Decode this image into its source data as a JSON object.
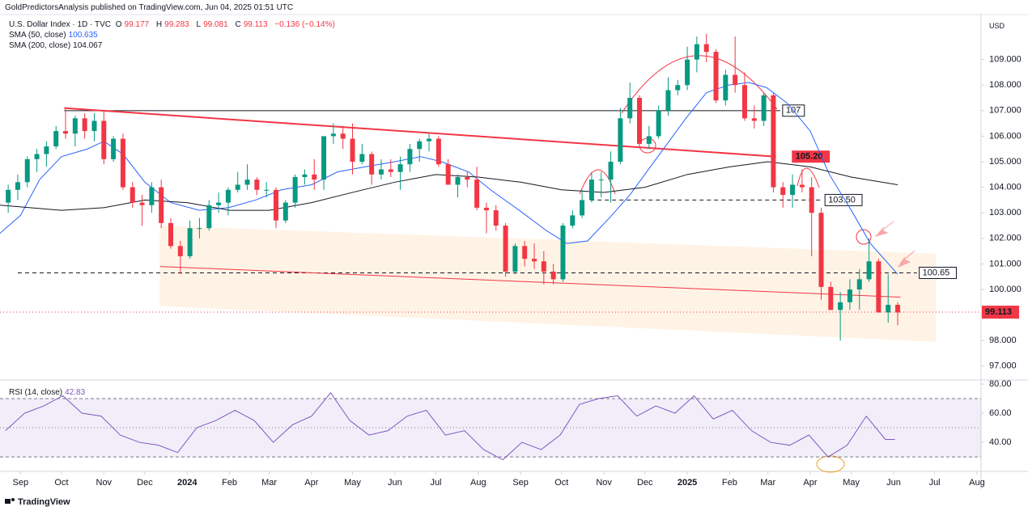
{
  "header": {
    "publisher": "GoldPredictorsAnalysis published on TradingView.com, Jun 04, 2025 01:51 UTC"
  },
  "footer": {
    "brand": "TradingView"
  },
  "chart_data": {
    "type": "candlestick",
    "symbol": "U.S. Dollar Index · 1D · TVC",
    "ohlc_labels": [
      "O",
      "H",
      "L",
      "C"
    ],
    "ohlc_values": [
      99.177,
      99.283,
      99.081,
      99.113
    ],
    "change": "−0.136 (−0.14%)",
    "currency": "USD",
    "up_color": "#089981",
    "down_color": "#f23645",
    "last_color": "#f23645",
    "xlim": [
      "2023-08-17",
      "2025-08-04"
    ],
    "xticks": [
      {
        "value": "2023-09-01",
        "label": "Sep"
      },
      {
        "value": "2023-10-01",
        "label": "Oct"
      },
      {
        "value": "2023-11-01",
        "label": "Nov"
      },
      {
        "value": "2023-12-01",
        "label": "Dec"
      },
      {
        "value": "2024-01-01",
        "label": "2024"
      },
      {
        "value": "2024-02-01",
        "label": "Feb"
      },
      {
        "value": "2024-03-01",
        "label": "Mar"
      },
      {
        "value": "2024-04-01",
        "label": "Apr"
      },
      {
        "value": "2024-05-01",
        "label": "May"
      },
      {
        "value": "2024-06-01",
        "label": "Jun"
      },
      {
        "value": "2024-07-01",
        "label": "Jul"
      },
      {
        "value": "2024-08-01",
        "label": "Aug"
      },
      {
        "value": "2024-09-01",
        "label": "Sep"
      },
      {
        "value": "2024-10-01",
        "label": "Oct"
      },
      {
        "value": "2024-11-01",
        "label": "Nov"
      },
      {
        "value": "2024-12-01",
        "label": "Dec"
      },
      {
        "value": "2025-01-01",
        "label": "2025"
      },
      {
        "value": "2025-02-01",
        "label": "Feb"
      },
      {
        "value": "2025-03-01",
        "label": "Mar"
      },
      {
        "value": "2025-04-01",
        "label": "Apr"
      },
      {
        "value": "2025-05-01",
        "label": "May"
      },
      {
        "value": "2025-06-01",
        "label": "Jun"
      },
      {
        "value": "2025-07-01",
        "label": "Jul"
      },
      {
        "value": "2025-08-01",
        "label": "Aug"
      }
    ],
    "ylim": [
      96.52,
      110.76
    ],
    "yticks": [
      {
        "value": 97,
        "label": "97.000"
      },
      {
        "value": 98,
        "label": "98.000"
      },
      {
        "value": 99,
        "label": "99.000"
      },
      {
        "value": 100,
        "label": "100.000"
      },
      {
        "value": 101,
        "label": "101.000"
      },
      {
        "value": 102,
        "label": "102.000"
      },
      {
        "value": 103,
        "label": "103.000"
      },
      {
        "value": 104,
        "label": "104.000"
      },
      {
        "value": 105,
        "label": "105.000"
      },
      {
        "value": 106,
        "label": "106.000"
      },
      {
        "value": 107,
        "label": "107.000"
      },
      {
        "value": 108,
        "label": "108.000"
      },
      {
        "value": 109,
        "label": "109.000"
      }
    ],
    "grid": false,
    "candles": {
      "x": [
        "2023-08-21",
        "2023-08-28",
        "2023-09-04",
        "2023-09-11",
        "2023-09-18",
        "2023-09-25",
        "2023-10-02",
        "2023-10-09",
        "2023-10-16",
        "2023-10-23",
        "2023-10-30",
        "2023-11-06",
        "2023-11-13",
        "2023-11-20",
        "2023-11-27",
        "2023-12-04",
        "2023-12-11",
        "2023-12-18",
        "2023-12-25",
        "2024-01-01",
        "2024-01-08",
        "2024-01-15",
        "2024-01-22",
        "2024-01-29",
        "2024-02-05",
        "2024-02-12",
        "2024-02-19",
        "2024-02-26",
        "2024-03-04",
        "2024-03-11",
        "2024-03-18",
        "2024-03-25",
        "2024-04-01",
        "2024-04-08",
        "2024-04-15",
        "2024-04-22",
        "2024-04-29",
        "2024-05-06",
        "2024-05-13",
        "2024-05-20",
        "2024-05-27",
        "2024-06-03",
        "2024-06-10",
        "2024-06-17",
        "2024-06-24",
        "2024-07-01",
        "2024-07-08",
        "2024-07-15",
        "2024-07-22",
        "2024-07-29",
        "2024-08-05",
        "2024-08-12",
        "2024-08-19",
        "2024-08-26",
        "2024-09-02",
        "2024-09-09",
        "2024-09-16",
        "2024-09-23",
        "2024-09-30",
        "2024-10-07",
        "2024-10-14",
        "2024-10-21",
        "2024-10-28",
        "2024-11-04",
        "2024-11-11",
        "2024-11-18",
        "2024-11-25",
        "2024-12-02",
        "2024-12-09",
        "2024-12-16",
        "2024-12-23",
        "2024-12-30",
        "2025-01-06",
        "2025-01-13",
        "2025-01-20",
        "2025-01-27",
        "2025-02-03",
        "2025-02-10",
        "2025-02-17",
        "2025-02-24",
        "2025-03-03",
        "2025-03-10",
        "2025-03-17",
        "2025-03-24",
        "2025-03-31",
        "2025-04-07",
        "2025-04-14",
        "2025-04-21",
        "2025-04-28",
        "2025-05-05",
        "2025-05-12",
        "2025-05-19",
        "2025-05-26",
        "2025-06-02"
      ],
      "open": [
        103.4,
        103.9,
        104.2,
        105.1,
        105.3,
        105.6,
        106.2,
        106.1,
        106.7,
        106.2,
        106.6,
        105.1,
        105.9,
        104.0,
        103.4,
        103.3,
        104.0,
        102.6,
        101.7,
        101.3,
        102.4,
        102.4,
        103.3,
        103.4,
        103.9,
        104.1,
        104.3,
        103.9,
        103.9,
        102.7,
        103.4,
        104.4,
        104.5,
        104.3,
        106.0,
        106.1,
        105.9,
        105.0,
        105.3,
        104.5,
        104.7,
        104.6,
        104.9,
        105.5,
        105.8,
        105.9,
        104.9,
        104.1,
        104.4,
        104.3,
        103.2,
        103.1,
        102.5,
        100.7,
        101.7,
        101.2,
        101.1,
        100.7,
        100.4,
        102.5,
        102.9,
        103.5,
        104.3,
        104.3,
        105.0,
        106.7,
        107.5,
        105.7,
        106.0,
        107.0,
        107.8,
        108.0,
        109.0,
        109.6,
        109.3,
        107.4,
        108.4,
        108.0,
        106.7,
        106.6,
        107.6,
        104.0,
        103.7,
        104.1,
        104.0,
        103.0,
        100.1,
        99.2,
        99.5,
        100.0,
        100.4,
        101.1,
        99.1,
        99.4
      ],
      "high": [
        104.1,
        104.5,
        105.2,
        105.5,
        105.8,
        106.4,
        107.1,
        106.8,
        106.9,
        106.9,
        107.0,
        106.0,
        106.1,
        104.2,
        103.7,
        104.2,
        104.3,
        102.8,
        101.9,
        102.7,
        102.8,
        103.5,
        103.8,
        104.0,
        104.6,
        104.9,
        104.4,
        104.2,
        104.0,
        103.5,
        104.5,
        104.7,
        105.1,
        106.0,
        106.5,
        106.4,
        106.5,
        105.7,
        105.4,
        105.1,
        105.1,
        105.2,
        105.7,
        105.9,
        106.1,
        106.0,
        105.1,
        104.5,
        104.6,
        104.8,
        103.4,
        103.3,
        102.6,
        101.8,
        101.9,
        101.8,
        101.5,
        101.0,
        102.6,
        103.1,
        103.9,
        104.6,
        104.6,
        105.4,
        107.1,
        108.1,
        107.6,
        106.4,
        107.2,
        108.3,
        108.2,
        109.5,
        109.9,
        110.0,
        109.4,
        108.6,
        109.9,
        108.5,
        107.2,
        107.7,
        107.7,
        104.2,
        104.5,
        104.7,
        104.4,
        103.2,
        100.3,
        99.9,
        100.4,
        100.8,
        102.0,
        101.2,
        100.6,
        99.5
      ],
      "low": [
        103.0,
        103.5,
        104.0,
        104.6,
        104.8,
        105.5,
        105.9,
        105.6,
        105.9,
        105.8,
        104.9,
        105.0,
        103.9,
        103.2,
        102.5,
        103.0,
        102.4,
        101.6,
        100.6,
        101.2,
        102.0,
        102.3,
        103.0,
        102.9,
        103.8,
        103.9,
        103.7,
        103.6,
        102.4,
        102.6,
        103.2,
        104.1,
        103.9,
        103.9,
        105.7,
        105.5,
        104.5,
        104.9,
        104.1,
        104.3,
        104.4,
        103.9,
        104.6,
        105.0,
        105.4,
        104.8,
        104.1,
        103.6,
        104.0,
        103.1,
        102.2,
        102.3,
        100.5,
        100.6,
        100.9,
        100.8,
        100.2,
        100.2,
        100.3,
        102.4,
        102.8,
        103.4,
        103.6,
        103.4,
        104.9,
        106.5,
        105.6,
        105.5,
        105.9,
        106.8,
        107.6,
        107.8,
        108.5,
        108.9,
        107.3,
        107.2,
        107.7,
        106.6,
        106.3,
        106.4,
        103.8,
        103.2,
        103.2,
        103.8,
        101.3,
        99.6,
        99.2,
        98.0,
        99.2,
        99.2,
        100.3,
        99.1,
        98.7,
        98.6
      ],
      "close": [
        103.9,
        104.2,
        105.1,
        105.3,
        105.6,
        106.2,
        106.1,
        106.7,
        106.2,
        106.6,
        105.1,
        105.9,
        104.0,
        103.4,
        103.3,
        104.0,
        102.6,
        101.7,
        101.3,
        102.4,
        102.4,
        103.3,
        103.4,
        103.9,
        104.1,
        104.3,
        103.9,
        103.9,
        102.7,
        103.4,
        104.4,
        104.5,
        104.3,
        106.0,
        106.1,
        105.9,
        105.0,
        105.3,
        104.5,
        104.7,
        104.6,
        104.9,
        105.5,
        105.8,
        105.9,
        104.9,
        104.1,
        104.4,
        104.3,
        103.2,
        103.1,
        102.5,
        100.7,
        101.7,
        101.2,
        101.1,
        100.7,
        100.4,
        102.5,
        102.9,
        103.5,
        104.3,
        104.3,
        105.0,
        106.7,
        107.5,
        105.7,
        106.0,
        107.0,
        107.8,
        108.0,
        109.0,
        109.6,
        109.3,
        107.4,
        108.4,
        108.0,
        106.7,
        106.6,
        107.6,
        104.0,
        103.7,
        104.1,
        104.0,
        103.0,
        100.1,
        99.2,
        99.5,
        100.0,
        100.4,
        101.1,
        99.1,
        99.4,
        99.1
      ]
    },
    "sma": [
      {
        "name": "SMA (50, close)",
        "last": 100.635,
        "color": "#2962ff",
        "x": [
          "2023-08-17",
          "2023-09-01",
          "2023-09-15",
          "2023-10-01",
          "2023-10-20",
          "2023-11-01",
          "2023-11-15",
          "2023-12-01",
          "2023-12-20",
          "2024-01-10",
          "2024-01-31",
          "2024-02-20",
          "2024-03-10",
          "2024-04-01",
          "2024-04-20",
          "2024-05-10",
          "2024-06-01",
          "2024-06-20",
          "2024-07-05",
          "2024-07-25",
          "2024-08-10",
          "2024-08-31",
          "2024-09-20",
          "2024-10-05",
          "2024-10-20",
          "2024-11-05",
          "2024-11-20",
          "2024-12-05",
          "2024-12-31",
          "2025-01-15",
          "2025-01-31",
          "2025-02-15",
          "2025-02-28",
          "2025-03-15",
          "2025-04-01",
          "2025-04-15",
          "2025-05-01",
          "2025-05-15",
          "2025-06-04"
        ],
        "values": [
          102.2,
          102.9,
          104.3,
          105.2,
          105.5,
          105.8,
          105.3,
          104.2,
          103.4,
          103.1,
          103.2,
          103.5,
          103.9,
          104.1,
          104.6,
          104.8,
          105.0,
          105.2,
          105.0,
          104.6,
          103.9,
          103.1,
          102.3,
          101.8,
          101.9,
          102.8,
          103.7,
          104.8,
          106.7,
          107.7,
          108.0,
          108.1,
          107.9,
          107.3,
          106.2,
          104.5,
          103.1,
          101.8,
          100.6
        ]
      },
      {
        "name": "SMA (200, close)",
        "last": 104.067,
        "color": "#131722",
        "x": [
          "2023-08-17",
          "2023-10-01",
          "2023-11-01",
          "2023-12-01",
          "2024-01-01",
          "2024-02-01",
          "2024-03-01",
          "2024-04-01",
          "2024-05-01",
          "2024-06-01",
          "2024-07-01",
          "2024-08-01",
          "2024-09-01",
          "2024-10-01",
          "2024-11-01",
          "2024-12-01",
          "2025-01-01",
          "2025-02-01",
          "2025-03-01",
          "2025-04-01",
          "2025-05-01",
          "2025-06-04"
        ],
        "values": [
          103.3,
          103.1,
          103.2,
          103.5,
          103.4,
          103.1,
          103.1,
          103.4,
          103.8,
          104.2,
          104.5,
          104.4,
          104.2,
          103.9,
          103.8,
          104.0,
          104.5,
          104.8,
          105.0,
          104.8,
          104.4,
          104.1
        ]
      }
    ],
    "levels": [
      {
        "value": 107,
        "label": "107",
        "from": "2023-10-03",
        "to": "2025-03-10",
        "color": "#131722",
        "dash": false
      },
      {
        "value": 103.5,
        "label": "103.50",
        "from": "2024-10-22",
        "to": "2025-04-10",
        "color": "#131722",
        "dash": true
      },
      {
        "value": 100.65,
        "label": "100.65",
        "from": "2023-08-30",
        "to": "2025-06-18",
        "color": "#131722",
        "dash": true
      }
    ],
    "trendlines": [
      {
        "label": "105.20",
        "x": [
          "2023-10-03",
          "2025-03-07"
        ],
        "y": [
          107.1,
          105.2
        ],
        "color": "#f23645"
      },
      {
        "x": [
          "2023-12-12",
          "2025-06-06"
        ],
        "y": [
          100.9,
          99.7
        ],
        "color": "#f23645"
      }
    ],
    "channel": {
      "x": [
        "2023-12-12",
        "2025-07-02",
        "2025-07-02",
        "2023-12-12"
      ],
      "y": [
        102.5,
        101.4,
        97.95,
        99.35
      ],
      "color": "#fff3e6"
    },
    "rsi": {
      "name": "RSI (14, close)",
      "last": 42.83,
      "color": "#7e57c2",
      "ylim": [
        20.6,
        82.8
      ],
      "yticks": [
        {
          "value": 80,
          "label": "80.00"
        },
        {
          "value": 60,
          "label": "60.00"
        },
        {
          "value": 40,
          "label": "40.00"
        }
      ],
      "levels": [
        70,
        50,
        30
      ],
      "x": [
        "2023-08-21",
        "2023-09-04",
        "2023-09-18",
        "2023-10-02",
        "2023-10-16",
        "2023-10-30",
        "2023-11-13",
        "2023-11-27",
        "2023-12-11",
        "2023-12-25",
        "2024-01-08",
        "2024-01-22",
        "2024-02-05",
        "2024-02-19",
        "2024-03-04",
        "2024-03-18",
        "2024-04-01",
        "2024-04-15",
        "2024-04-29",
        "2024-05-13",
        "2024-05-27",
        "2024-06-10",
        "2024-06-24",
        "2024-07-08",
        "2024-07-22",
        "2024-08-05",
        "2024-08-19",
        "2024-09-02",
        "2024-09-16",
        "2024-09-30",
        "2024-10-14",
        "2024-10-28",
        "2024-11-11",
        "2024-11-25",
        "2024-12-09",
        "2024-12-23",
        "2025-01-06",
        "2025-01-20",
        "2025-02-03",
        "2025-02-17",
        "2025-03-03",
        "2025-03-17",
        "2025-03-31",
        "2025-04-14",
        "2025-04-28",
        "2025-05-12",
        "2025-05-26",
        "2025-06-02"
      ],
      "values": [
        48,
        60,
        65,
        72,
        60,
        58,
        45,
        40,
        38,
        33,
        50,
        55,
        62,
        55,
        40,
        52,
        58,
        74,
        55,
        45,
        48,
        58,
        62,
        45,
        48,
        35,
        28,
        40,
        35,
        45,
        66,
        70,
        72,
        58,
        65,
        60,
        72,
        56,
        62,
        48,
        40,
        38,
        45,
        30,
        38,
        58,
        42,
        42
      ]
    }
  }
}
